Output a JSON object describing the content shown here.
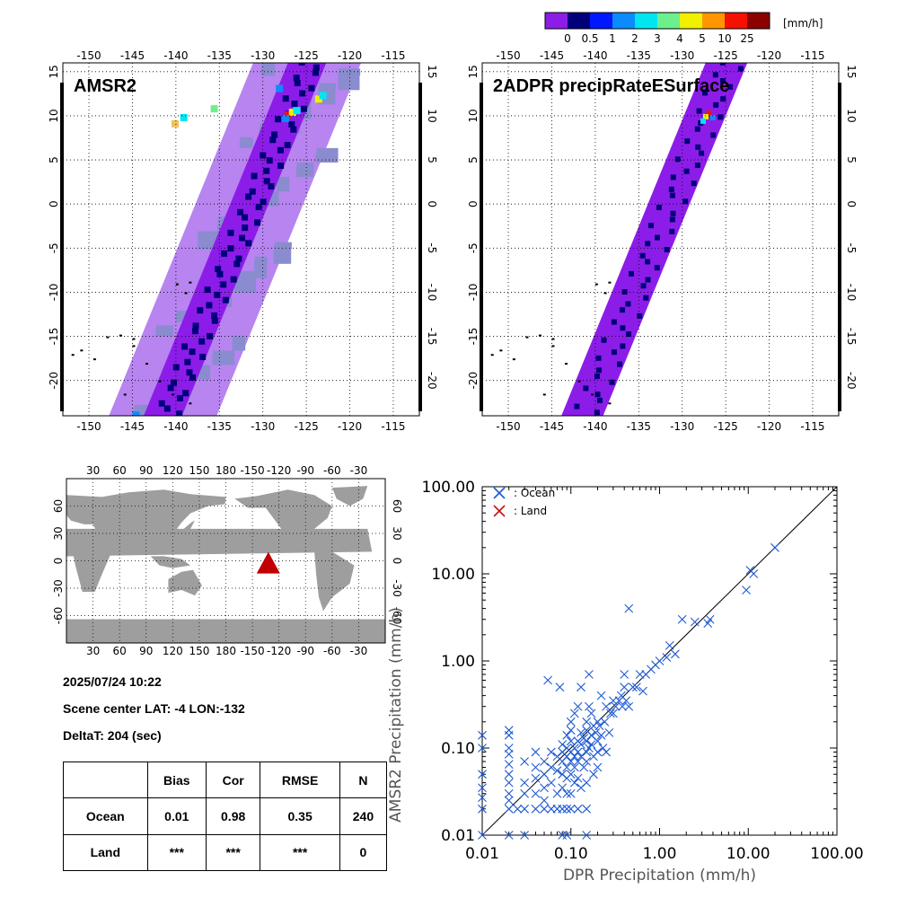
{
  "colorbar": {
    "unit": "[mm/h]",
    "colors": [
      "#8c1de8",
      "#00007a",
      "#0018ff",
      "#0a8cff",
      "#00e6f0",
      "#6cf08c",
      "#f0f000",
      "#ff9600",
      "#f51000",
      "#8c0000"
    ],
    "labels": [
      "0",
      "0.5",
      "1",
      "2",
      "3",
      "4",
      "5",
      "10",
      "25"
    ]
  },
  "map_panels": [
    {
      "title": "AMSR2",
      "lon_ticks": [
        "-150",
        "-145",
        "-140",
        "-135",
        "-130",
        "-125",
        "-120",
        "-115"
      ],
      "lat_ticks": [
        "15",
        "10",
        "5",
        "0",
        "-5",
        "-10",
        "-15",
        "-20"
      ]
    },
    {
      "title": "2ADPR precipRateESurface",
      "lon_ticks": [
        "-150",
        "-145",
        "-140",
        "-135",
        "-130",
        "-125",
        "-120",
        "-115"
      ],
      "lat_ticks": [
        "15",
        "10",
        "5",
        "0",
        "-5",
        "-10",
        "-15",
        "-20"
      ]
    }
  ],
  "world_map": {
    "lon_ticks": [
      "30",
      "60",
      "90",
      "120",
      "150",
      "180",
      "-150",
      "-120",
      "-90",
      "-60",
      "-30"
    ],
    "lat_ticks": [
      "60",
      "30",
      "0",
      "-30",
      "-60"
    ],
    "scene_center": {
      "lat": -4,
      "lon": -132
    }
  },
  "info": {
    "datetime": "2025/07/24 10:22",
    "scene_center": "Scene center LAT: -4   LON:-132",
    "delta_t": "DeltaT:  204 (sec)"
  },
  "stats_table": {
    "headers": [
      "",
      "Bias",
      "Cor",
      "RMSE",
      "N"
    ],
    "rows": [
      [
        "Ocean",
        "0.01",
        "0.98",
        "0.35",
        "240"
      ],
      [
        "Land",
        "***",
        "***",
        "***",
        "0"
      ]
    ]
  },
  "chart_data": {
    "type": "scatter",
    "xlabel": "DPR Precipitation (mm/h)",
    "ylabel": "AMSR2 Precipitation (mm/h)",
    "xlim": [
      0.01,
      100
    ],
    "ylim": [
      0.01,
      100
    ],
    "log_scale": true,
    "tick_labels": [
      "0.01",
      "0.10",
      "1.00",
      "10.00",
      "100.00"
    ],
    "legend": [
      {
        "name": ": Ocean",
        "color": "#1e5ad2"
      },
      {
        "name": ": Land",
        "color": "#c81414"
      }
    ],
    "legend_placement": "top-left",
    "series": [
      {
        "name": ": Ocean",
        "points": [
          [
            0.01,
            0.14
          ],
          [
            0.01,
            0.1
          ],
          [
            0.01,
            0.05
          ],
          [
            0.01,
            0.035
          ],
          [
            0.01,
            0.027
          ],
          [
            0.01,
            0.02
          ],
          [
            0.01,
            0.01
          ],
          [
            0.02,
            0.16
          ],
          [
            0.02,
            0.14
          ],
          [
            0.02,
            0.1
          ],
          [
            0.02,
            0.085
          ],
          [
            0.02,
            0.065
          ],
          [
            0.02,
            0.05
          ],
          [
            0.02,
            0.04
          ],
          [
            0.02,
            0.03
          ],
          [
            0.02,
            0.025
          ],
          [
            0.02,
            0.02
          ],
          [
            0.02,
            0.01
          ],
          [
            0.025,
            0.02
          ],
          [
            0.03,
            0.07
          ],
          [
            0.03,
            0.04
          ],
          [
            0.03,
            0.03
          ],
          [
            0.03,
            0.02
          ],
          [
            0.03,
            0.01
          ],
          [
            0.04,
            0.09
          ],
          [
            0.04,
            0.06
          ],
          [
            0.04,
            0.045
          ],
          [
            0.04,
            0.03
          ],
          [
            0.04,
            0.02
          ],
          [
            0.05,
            0.07
          ],
          [
            0.05,
            0.05
          ],
          [
            0.05,
            0.035
          ],
          [
            0.05,
            0.025
          ],
          [
            0.05,
            0.02
          ],
          [
            0.055,
            0.6
          ],
          [
            0.06,
            0.09
          ],
          [
            0.06,
            0.06
          ],
          [
            0.06,
            0.04
          ],
          [
            0.06,
            0.02
          ],
          [
            0.07,
            0.08
          ],
          [
            0.07,
            0.055
          ],
          [
            0.07,
            0.03
          ],
          [
            0.07,
            0.02
          ],
          [
            0.075,
            0.5
          ],
          [
            0.08,
            0.11
          ],
          [
            0.08,
            0.09
          ],
          [
            0.08,
            0.07
          ],
          [
            0.08,
            0.05
          ],
          [
            0.08,
            0.035
          ],
          [
            0.08,
            0.02
          ],
          [
            0.08,
            0.01
          ],
          [
            0.09,
            0.14
          ],
          [
            0.09,
            0.1
          ],
          [
            0.09,
            0.08
          ],
          [
            0.09,
            0.06
          ],
          [
            0.09,
            0.045
          ],
          [
            0.09,
            0.03
          ],
          [
            0.09,
            0.02
          ],
          [
            0.09,
            0.01
          ],
          [
            0.1,
            0.2
          ],
          [
            0.1,
            0.16
          ],
          [
            0.1,
            0.12
          ],
          [
            0.1,
            0.09
          ],
          [
            0.1,
            0.07
          ],
          [
            0.1,
            0.05
          ],
          [
            0.1,
            0.03
          ],
          [
            0.1,
            0.02
          ],
          [
            0.11,
            0.25
          ],
          [
            0.11,
            0.1
          ],
          [
            0.11,
            0.08
          ],
          [
            0.11,
            0.06
          ],
          [
            0.11,
            0.04
          ],
          [
            0.12,
            0.3
          ],
          [
            0.12,
            0.12
          ],
          [
            0.12,
            0.09
          ],
          [
            0.12,
            0.07
          ],
          [
            0.12,
            0.045
          ],
          [
            0.12,
            0.02
          ],
          [
            0.13,
            0.5
          ],
          [
            0.13,
            0.15
          ],
          [
            0.13,
            0.11
          ],
          [
            0.13,
            0.08
          ],
          [
            0.13,
            0.035
          ],
          [
            0.14,
            0.13
          ],
          [
            0.14,
            0.06
          ],
          [
            0.15,
            0.2
          ],
          [
            0.15,
            0.16
          ],
          [
            0.15,
            0.12
          ],
          [
            0.15,
            0.09
          ],
          [
            0.15,
            0.07
          ],
          [
            0.15,
            0.04
          ],
          [
            0.15,
            0.02
          ],
          [
            0.15,
            0.01
          ],
          [
            0.16,
            0.7
          ],
          [
            0.16,
            0.3
          ],
          [
            0.16,
            0.1
          ],
          [
            0.17,
            0.25
          ],
          [
            0.17,
            0.14
          ],
          [
            0.17,
            0.11
          ],
          [
            0.18,
            0.18
          ],
          [
            0.18,
            0.08
          ],
          [
            0.18,
            0.05
          ],
          [
            0.19,
            0.15
          ],
          [
            0.2,
            0.2
          ],
          [
            0.2,
            0.12
          ],
          [
            0.2,
            0.09
          ],
          [
            0.2,
            0.06
          ],
          [
            0.21,
            0.18
          ],
          [
            0.22,
            0.4
          ],
          [
            0.22,
            0.14
          ],
          [
            0.23,
            0.1
          ],
          [
            0.24,
            0.2
          ],
          [
            0.25,
            0.09
          ],
          [
            0.25,
            0.3
          ],
          [
            0.27,
            0.15
          ],
          [
            0.28,
            0.25
          ],
          [
            0.3,
            0.25
          ],
          [
            0.3,
            0.35
          ],
          [
            0.32,
            0.3
          ],
          [
            0.35,
            0.35
          ],
          [
            0.37,
            0.4
          ],
          [
            0.38,
            0.3
          ],
          [
            0.4,
            0.5
          ],
          [
            0.4,
            0.7
          ],
          [
            0.42,
            0.35
          ],
          [
            0.45,
            4.0
          ],
          [
            0.45,
            0.3
          ],
          [
            0.5,
            0.5
          ],
          [
            0.55,
            0.5
          ],
          [
            0.6,
            0.7
          ],
          [
            0.65,
            0.45
          ],
          [
            0.7,
            0.7
          ],
          [
            0.8,
            0.8
          ],
          [
            0.9,
            0.9
          ],
          [
            1.0,
            1.0
          ],
          [
            1.2,
            1.1
          ],
          [
            1.3,
            1.5
          ],
          [
            1.5,
            1.2
          ],
          [
            1.8,
            3.0
          ],
          [
            2.5,
            2.8
          ],
          [
            3.5,
            2.7
          ],
          [
            3.7,
            3.0
          ],
          [
            9.5,
            6.5
          ],
          [
            10.5,
            11
          ],
          [
            11.5,
            10
          ],
          [
            20,
            20
          ]
        ]
      },
      {
        "name": ": Land",
        "points": []
      }
    ]
  }
}
